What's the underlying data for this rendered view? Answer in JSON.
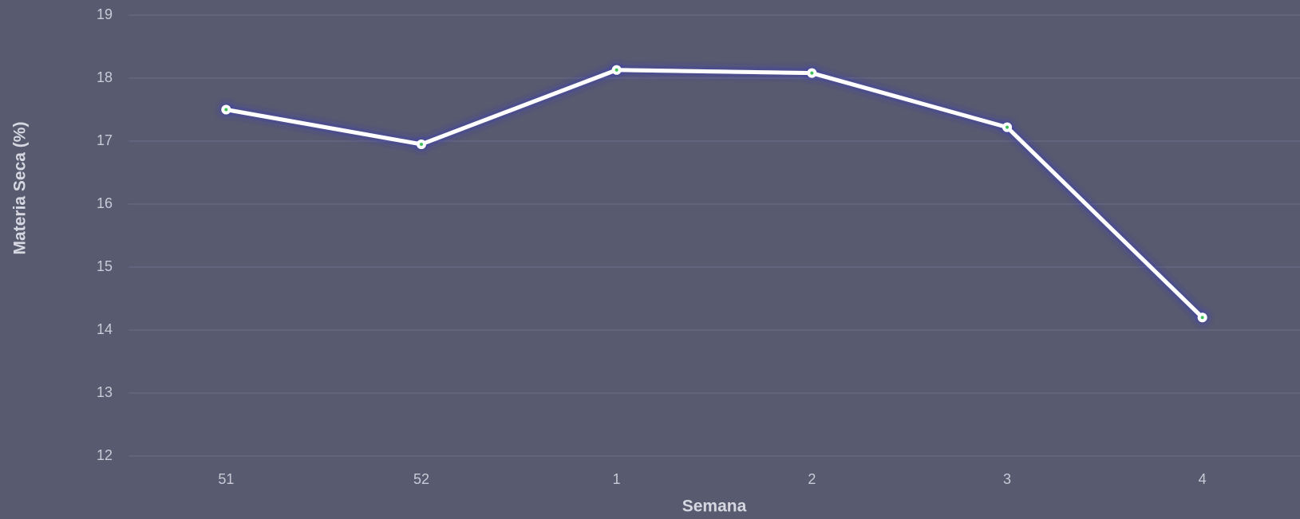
{
  "chart_data": {
    "type": "line",
    "x_label": "Semana",
    "y_label": "Materia Seca (%)",
    "categories": [
      "51",
      "52",
      "1",
      "2",
      "3",
      "4"
    ],
    "series": [
      {
        "name": "Materia Seca",
        "color": "#ffffff",
        "values": [
          17.5,
          16.95,
          18.13,
          18.08,
          17.22,
          14.2
        ]
      }
    ],
    "ylim": [
      12,
      19
    ],
    "yticks": [
      12,
      13,
      14,
      15,
      16,
      17,
      18,
      19
    ],
    "grid": true
  }
}
